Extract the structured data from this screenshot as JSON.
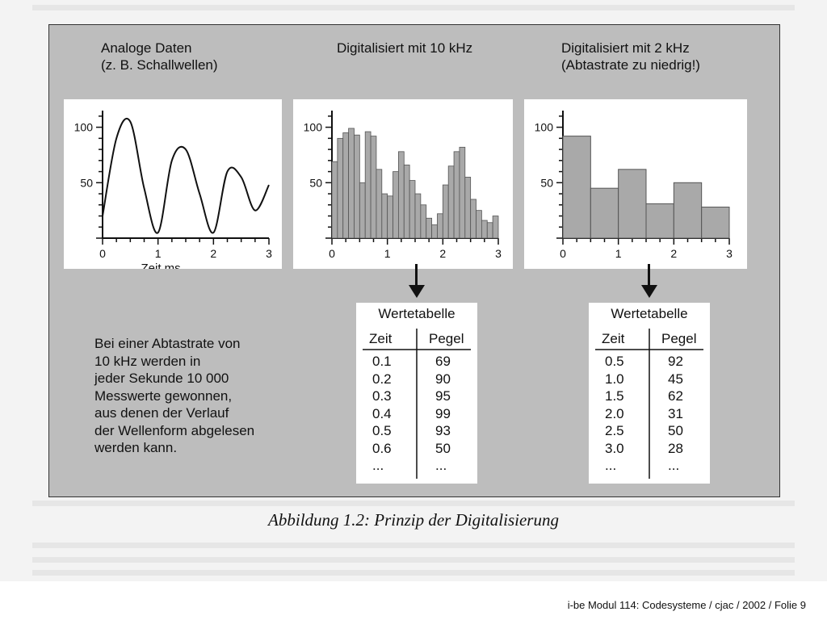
{
  "figure": {
    "caption": "Abbildung 1.2: Prinzip der Digitalisierung",
    "analog": {
      "title_line1": "Analoge Daten",
      "title_line2": "(z. B. Schallwellen)",
      "xlabel": "Zeit ms"
    },
    "digital10": {
      "title": "Digitalisiert mit 10 kHz"
    },
    "digital2": {
      "title_line1": "Digitalisiert mit 2 kHz",
      "title_line2": "(Abtastrate zu niedrig!)"
    },
    "explanation": [
      "Bei einer Abtastrate von",
      "10 kHz werden in",
      "jeder Sekunde 10 000",
      "Messwerte gewonnen,",
      "aus denen der Verlauf",
      "der Wellenform abgelesen",
      "werden kann."
    ],
    "table1": {
      "title": "Wertetabelle",
      "col_time": "Zeit",
      "col_level": "Pegel",
      "times": [
        "0.1",
        "0.2",
        "0.3",
        "0.4",
        "0.5",
        "0.6",
        "..."
      ],
      "levels": [
        "69",
        "90",
        "95",
        "99",
        "93",
        "50",
        "..."
      ]
    },
    "table2": {
      "title": "Wertetabelle",
      "col_time": "Zeit",
      "col_level": "Pegel",
      "times": [
        "0.5",
        "1.0",
        "1.5",
        "2.0",
        "2.5",
        "3.0",
        "..."
      ],
      "levels": [
        "92",
        "45",
        "62",
        "31",
        "50",
        "28",
        "..."
      ]
    }
  },
  "chart_data": [
    {
      "type": "line",
      "x": [
        0,
        0.25,
        0.5,
        0.75,
        1.0,
        1.25,
        1.5,
        1.75,
        2.0,
        2.25,
        2.5,
        2.75,
        3.0
      ],
      "values": [
        20,
        90,
        105,
        45,
        5,
        70,
        80,
        40,
        5,
        60,
        55,
        25,
        48
      ],
      "xlabel": "Zeit ms",
      "xticks": [
        "0",
        "1",
        "2",
        "3"
      ],
      "yticks": [
        "50",
        "100"
      ],
      "xlim": [
        0,
        3
      ],
      "ylim": [
        0,
        115
      ]
    },
    {
      "type": "bar",
      "x_start": 0,
      "x_step": 0.1,
      "values": [
        69,
        90,
        95,
        99,
        93,
        50,
        96,
        92,
        62,
        40,
        38,
        60,
        78,
        66,
        52,
        40,
        30,
        18,
        12,
        22,
        48,
        65,
        78,
        82,
        55,
        35,
        25,
        16,
        14,
        20
      ],
      "xticks": [
        "0",
        "1",
        "2",
        "3"
      ],
      "yticks": [
        "50",
        "100"
      ],
      "xlim": [
        0,
        3
      ],
      "ylim": [
        0,
        115
      ]
    },
    {
      "type": "bar",
      "x_start": 0,
      "x_step": 0.5,
      "values": [
        92,
        45,
        62,
        31,
        50,
        28
      ],
      "xticks": [
        "0",
        "1",
        "2",
        "3"
      ],
      "yticks": [
        "50",
        "100"
      ],
      "xlim": [
        0,
        3
      ],
      "ylim": [
        0,
        115
      ]
    }
  ],
  "footer": {
    "text": "i-be Modul 114: Codesysteme / cjac / 2002 / Folie 9"
  }
}
